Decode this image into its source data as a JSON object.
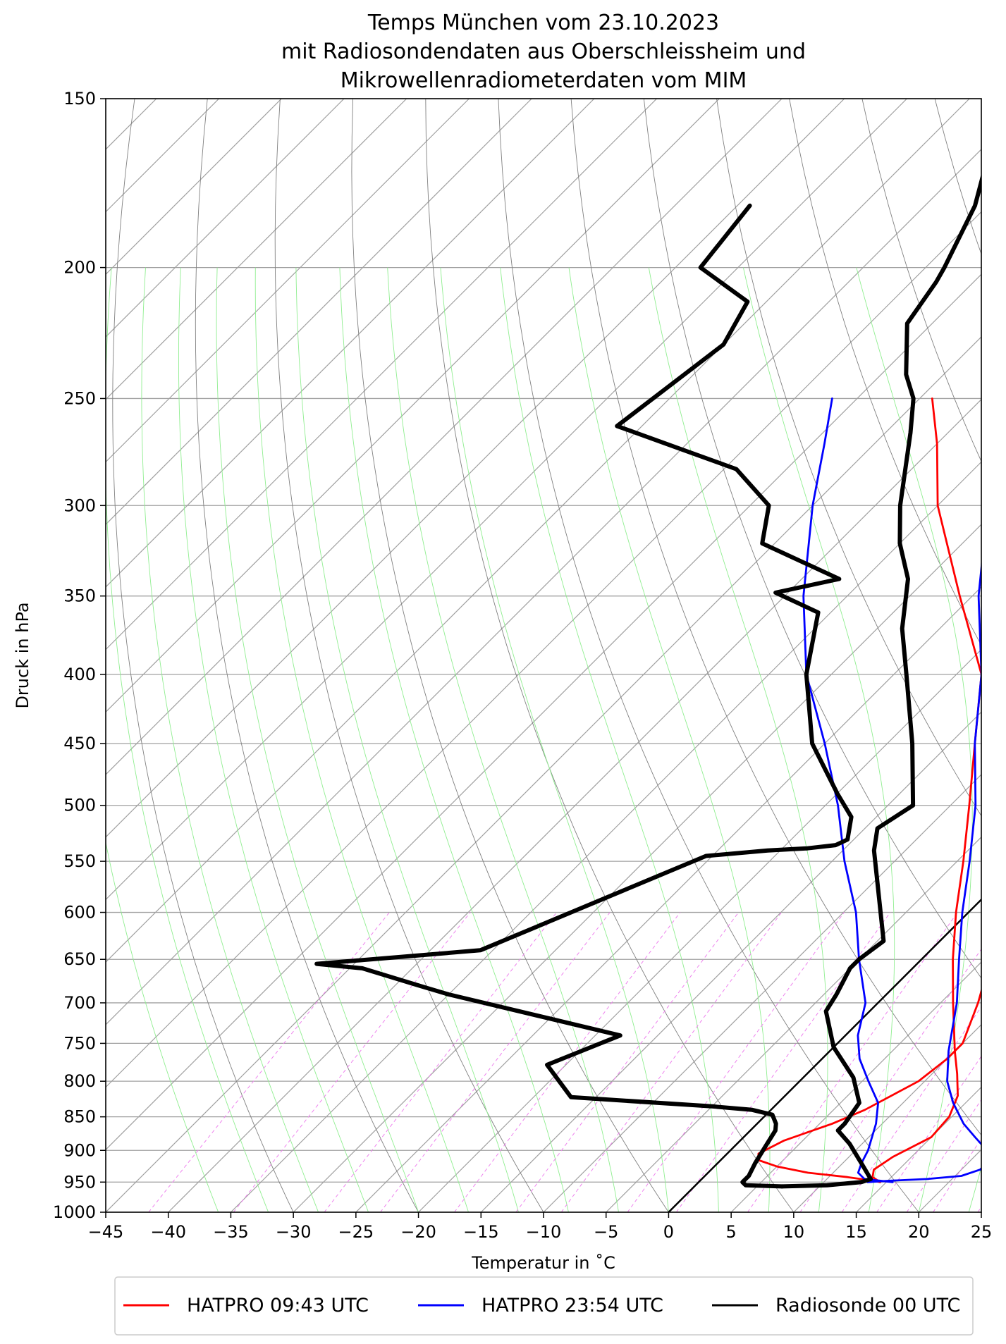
{
  "chart_data": {
    "type": "line",
    "title": [
      "Temps München vom 23.10.2023",
      "mit Radiosondendaten aus Oberschleissheim und",
      "Mikrowellenradiometerdaten vom MIM"
    ],
    "xlabel": "Temperatur in $^\\circ$C",
    "xlabel_display": "Temperatur in ˚C",
    "ylabel": "Druck in hPa",
    "xlim": [
      -45,
      25
    ],
    "ylim": [
      1000,
      150
    ],
    "y_scale": "log",
    "skew_t": true,
    "x_ticks": [
      "−45",
      "−40",
      "−35",
      "−30",
      "−25",
      "−20",
      "−15",
      "−10",
      "−5",
      "0",
      "5",
      "10",
      "15",
      "20",
      "25"
    ],
    "x_tick_values": [
      -45,
      -40,
      -35,
      -30,
      -25,
      -20,
      -15,
      -10,
      -5,
      0,
      5,
      10,
      15,
      20,
      25
    ],
    "y_ticks": [
      "150",
      "200",
      "250",
      "300",
      "350",
      "400",
      "450",
      "500",
      "550",
      "600",
      "650",
      "700",
      "750",
      "800",
      "850",
      "900",
      "950",
      "1000"
    ],
    "y_tick_values": [
      150,
      200,
      250,
      300,
      350,
      400,
      450,
      500,
      550,
      600,
      650,
      700,
      750,
      800,
      850,
      900,
      950,
      1000
    ],
    "grid": true,
    "legend": {
      "placement": "bottom",
      "entries": [
        {
          "label": "HATPRO 09:43 UTC",
          "color": "#ff0000"
        },
        {
          "label": "HATPRO 23:54 UTC",
          "color": "#0000ff"
        },
        {
          "label": "Radiosonde 00 UTC",
          "color": "#000000"
        }
      ]
    },
    "colors": {
      "dry_adiabats": "#808080",
      "moist_adiabats": "#90ee90",
      "mixing_ratio": "#ee82ee",
      "isotherms": "#a0a0a0",
      "isobars": "#a0a0a0"
    },
    "zero_isotherm": {
      "p": [
        1000,
        150
      ],
      "t": [
        0,
        0
      ]
    },
    "series": [
      {
        "name": "HATPRO 09:43 UTC",
        "color": "#ff0000",
        "p": [
          950,
          947,
          942,
          935,
          925,
          915,
          905,
          885,
          860,
          840,
          800,
          770,
          750,
          700,
          650,
          600,
          550,
          500,
          450,
          400,
          350,
          300,
          270,
          250
        ],
        "t": [
          14.5,
          13.5,
          11.5,
          8,
          5,
          3,
          2.5,
          3.5,
          6,
          7.5,
          9.5,
          10,
          10,
          8,
          5.5,
          2.5,
          -1,
          -5,
          -11,
          -18,
          -26,
          -35,
          -40,
          -44
        ]
      },
      {
        "name": "HATPRO 09:43 UTC",
        "color": "#ff0000",
        "p": [
          950,
          942,
          930,
          910,
          880,
          850,
          820,
          790,
          760,
          700,
          650,
          600,
          550,
          500,
          450,
          400,
          350,
          300,
          270,
          250
        ],
        "t": [
          14.5,
          13.5,
          13,
          13.5,
          15,
          14.8,
          13.8,
          12,
          10,
          6,
          2.5,
          -1,
          -4.5,
          -8.5,
          -13,
          -18,
          -24,
          -31,
          -35,
          -38.5
        ]
      },
      {
        "name": "HATPRO 23:54 UTC",
        "color": "#0000ff",
        "p": [
          950,
          945,
          935,
          920,
          900,
          860,
          830,
          800,
          770,
          740,
          700,
          650,
          600,
          550,
          500,
          450,
          400,
          350,
          300,
          270,
          250
        ],
        "t": [
          15.5,
          13,
          12,
          11.5,
          11,
          9.5,
          8,
          5.5,
          3,
          1,
          -1,
          -5,
          -9,
          -14,
          -19,
          -25,
          -32,
          -38.5,
          -45,
          -49,
          -52
        ]
      },
      {
        "name": "HATPRO 23:54 UTC",
        "color": "#0000ff",
        "p": [
          950,
          948,
          945,
          940,
          930,
          915,
          900,
          880,
          860,
          830,
          800,
          760,
          700,
          650,
          600,
          550,
          500,
          450,
          400,
          350,
          300,
          270,
          250
        ],
        "t": [
          13.5,
          15,
          18,
          20.5,
          21.5,
          21.5,
          20.5,
          18.5,
          16.5,
          14,
          11.8,
          9.5,
          6.3,
          3,
          -0.5,
          -4,
          -8,
          -13,
          -18,
          -24.5,
          -31,
          -35,
          -38
        ]
      },
      {
        "name": "Radiosonde 00 UTC",
        "color": "#000000",
        "p": [
          957,
          955,
          950,
          945,
          920,
          890,
          870,
          860,
          830,
          795,
          755,
          710,
          690,
          660,
          650,
          630,
          540,
          520,
          500,
          450,
          400,
          370,
          340,
          320,
          300,
          265,
          250,
          240,
          220,
          205,
          200,
          180,
          165,
          150
        ],
        "t": [
          7,
          10.5,
          13,
          13.5,
          11.5,
          9,
          7,
          7,
          6.5,
          4,
          0,
          -3.5,
          -4,
          -5,
          -5,
          -4.5,
          -12.5,
          -14,
          -13,
          -18,
          -24,
          -28,
          -31.5,
          -35,
          -38,
          -43,
          -45.5,
          -48,
          -52,
          -53,
          -53.5,
          -56,
          -59,
          -61.5
        ]
      },
      {
        "name": "Radiosonde 00 UTC",
        "color": "#000000",
        "p": [
          957,
          955,
          950,
          940,
          920,
          895,
          870,
          860,
          847,
          840,
          835,
          822,
          778,
          740,
          690,
          680,
          660,
          655,
          640,
          545,
          540,
          538,
          535,
          530,
          510,
          490,
          450,
          400,
          360,
          348,
          340,
          320,
          300,
          282,
          262,
          228,
          212,
          200,
          180
        ],
        "t": [
          7,
          4,
          3.5,
          3.5,
          3,
          2.5,
          2,
          1.5,
          0.5,
          -1.5,
          -5,
          -17,
          -21.5,
          -18,
          -35,
          -38,
          -44,
          -48,
          -36,
          -25.5,
          -21,
          -18,
          -16,
          -15.5,
          -17,
          -20,
          -26,
          -32,
          -36,
          -41,
          -37,
          -46,
          -48.5,
          -54,
          -67,
          -65,
          -66.5,
          -73,
          -74
        ]
      }
    ]
  }
}
